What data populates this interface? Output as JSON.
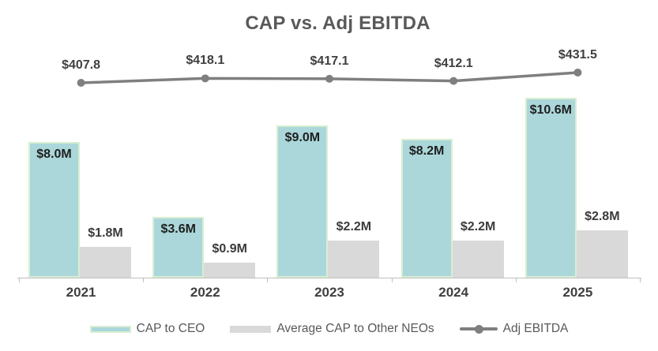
{
  "chart_data": {
    "type": "bar",
    "subtype": "grouped bars with secondary-axis line (combo chart)",
    "title": "CAP vs. Adj EBITDA",
    "categories": [
      "2021",
      "2022",
      "2023",
      "2024",
      "2025"
    ],
    "series": [
      {
        "name": "CAP to CEO",
        "type": "bar",
        "unit": "$M",
        "values": [
          8.0,
          3.6,
          9.0,
          8.2,
          10.6
        ],
        "labels": [
          "$8.0M",
          "$3.6M",
          "$9.0M",
          "$8.2M",
          "$10.6M"
        ],
        "label_position": "inside-top",
        "color": "#abd7da",
        "border_color": "#d8eed2",
        "axis": "primary"
      },
      {
        "name": "Average CAP to Other NEOs",
        "type": "bar",
        "unit": "$M",
        "values": [
          1.8,
          0.9,
          2.2,
          2.2,
          2.8
        ],
        "labels": [
          "$1.8M",
          "$0.9M",
          "$2.2M",
          "$2.2M",
          "$2.8M"
        ],
        "label_position": "above",
        "color": "#d9d9d9",
        "axis": "primary"
      },
      {
        "name": "Adj EBITDA",
        "type": "line",
        "values": [
          407.8,
          418.1,
          417.1,
          412.1,
          431.5
        ],
        "labels": [
          "$407.8",
          "$418.1",
          "$417.1",
          "$412.1",
          "$431.5"
        ],
        "label_position": "above",
        "color": "#7f7f7f",
        "marker": "circle",
        "axis": "secondary"
      }
    ],
    "y_primary_lim": [
      0,
      12
    ],
    "y_secondary_lim": [
      400,
      440
    ],
    "grid": false,
    "axes_visible": "x-only",
    "legend_position": "bottom",
    "colors": {
      "title": "#595959",
      "bar_inside_label": "#1f1f1f",
      "bar_outside_label": "#3b3b3b",
      "line_label": "#404040",
      "axis_line": "#bfbfbf",
      "category_label": "#404040",
      "legend_text": "#595959"
    }
  }
}
